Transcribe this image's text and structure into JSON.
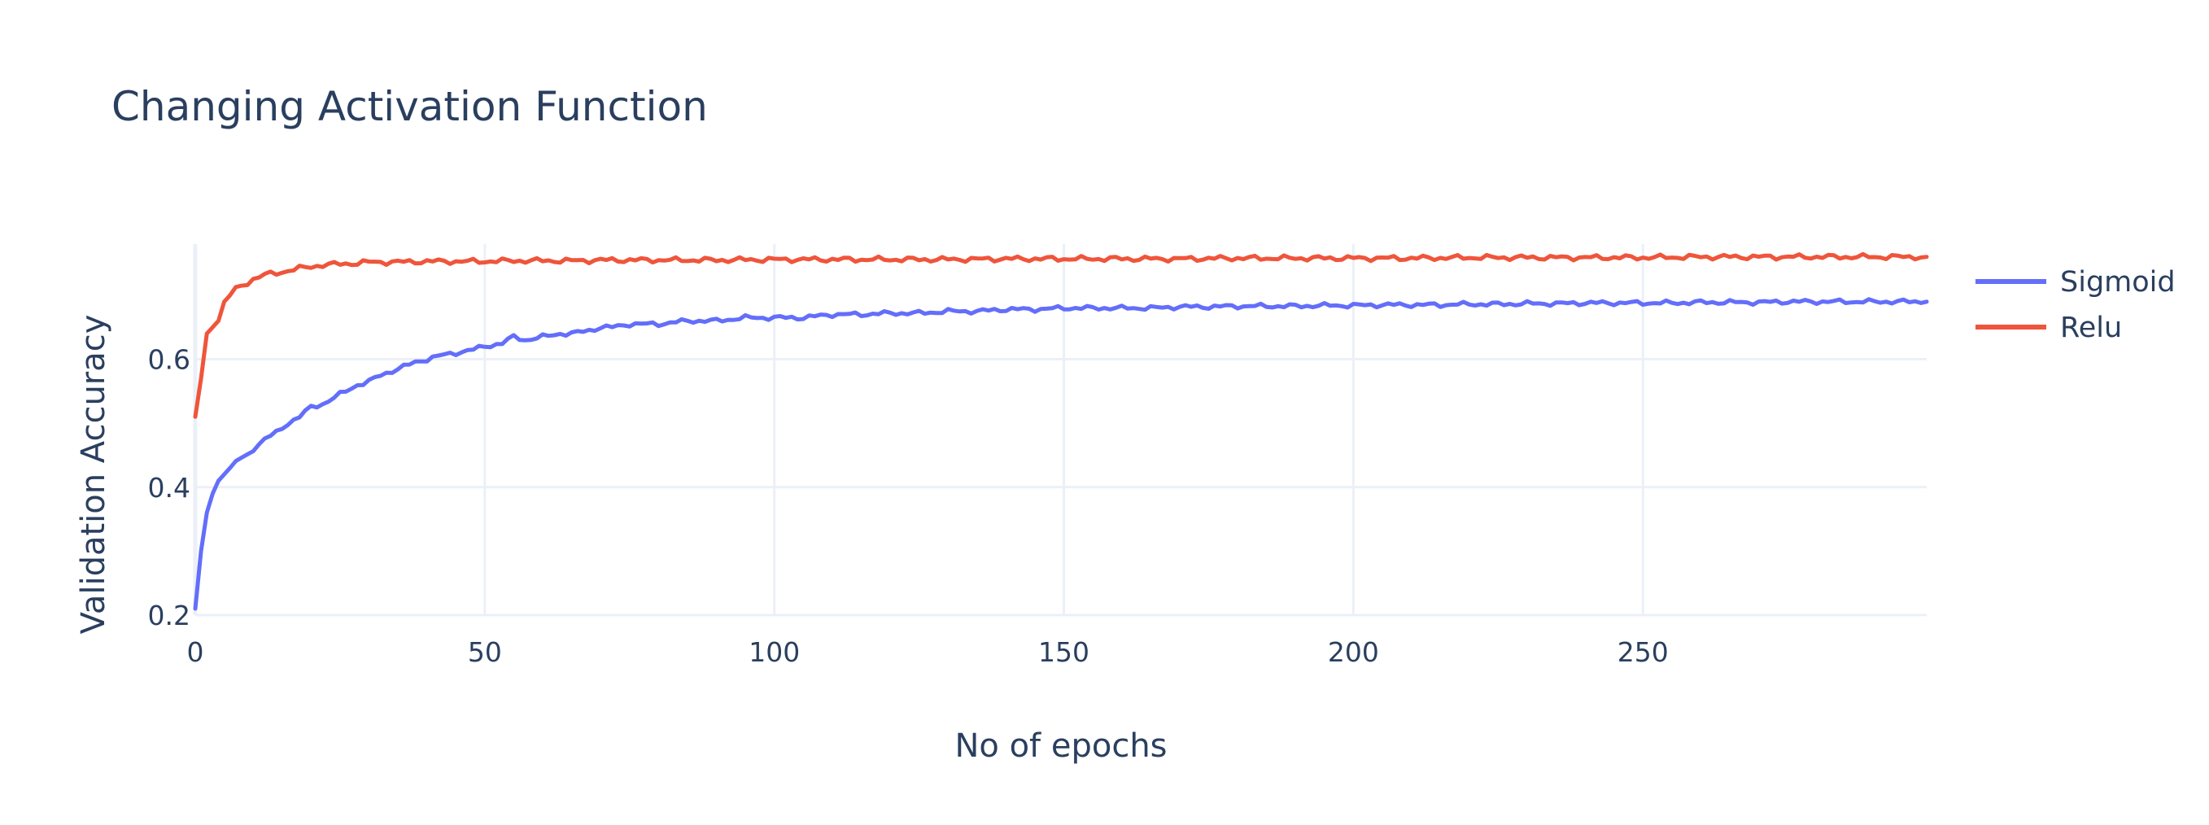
{
  "chart_data": {
    "type": "line",
    "title": "Changing Activation Function",
    "xlabel": "No of epochs",
    "ylabel": "Validation Accuracy",
    "xlim": [
      0,
      299
    ],
    "ylim": [
      0.2,
      0.78
    ],
    "xticks": [
      0,
      50,
      100,
      150,
      200,
      250
    ],
    "yticks": [
      0.2,
      0.4,
      0.6
    ],
    "ytick_labels": [
      "0.2",
      "0.4",
      "0.6"
    ],
    "grid": true,
    "legend_position": "top-right",
    "series": [
      {
        "name": "Sigmoid",
        "color": "#636efa",
        "x": [
          0,
          1,
          2,
          3,
          4,
          5,
          6,
          7,
          8,
          9,
          10,
          12,
          14,
          16,
          18,
          20,
          22,
          25,
          28,
          30,
          32,
          35,
          38,
          40,
          42,
          45,
          48,
          50,
          53,
          55,
          57,
          60,
          63,
          65,
          68,
          70,
          72,
          75,
          80,
          85,
          90,
          95,
          100,
          105,
          110,
          115,
          120,
          125,
          130,
          135,
          140,
          145,
          150,
          155,
          160,
          165,
          170,
          175,
          180,
          185,
          190,
          195,
          200,
          205,
          210,
          215,
          220,
          225,
          230,
          235,
          240,
          245,
          250,
          255,
          260,
          265,
          270,
          275,
          280,
          285,
          290,
          295,
          299
        ],
        "y": [
          0.21,
          0.3,
          0.36,
          0.39,
          0.41,
          0.42,
          0.43,
          0.44,
          0.445,
          0.45,
          0.46,
          0.475,
          0.485,
          0.5,
          0.51,
          0.525,
          0.53,
          0.545,
          0.56,
          0.565,
          0.575,
          0.585,
          0.595,
          0.6,
          0.605,
          0.61,
          0.615,
          0.62,
          0.625,
          0.635,
          0.63,
          0.635,
          0.64,
          0.64,
          0.645,
          0.65,
          0.65,
          0.655,
          0.655,
          0.66,
          0.66,
          0.665,
          0.665,
          0.665,
          0.67,
          0.67,
          0.672,
          0.672,
          0.675,
          0.675,
          0.678,
          0.678,
          0.68,
          0.68,
          0.68,
          0.68,
          0.682,
          0.682,
          0.683,
          0.683,
          0.683,
          0.684,
          0.684,
          0.685,
          0.685,
          0.685,
          0.686,
          0.686,
          0.687,
          0.687,
          0.688,
          0.688,
          0.688,
          0.688,
          0.689,
          0.689,
          0.689,
          0.69,
          0.69,
          0.69,
          0.69,
          0.69,
          0.69
        ]
      },
      {
        "name": "Relu",
        "color": "#ef553b",
        "x": [
          0,
          1,
          2,
          3,
          4,
          5,
          6,
          7,
          8,
          9,
          10,
          11,
          12,
          14,
          16,
          18,
          20,
          22,
          25,
          28,
          30,
          35,
          40,
          45,
          50,
          55,
          60,
          65,
          70,
          75,
          80,
          90,
          100,
          110,
          120,
          130,
          140,
          150,
          160,
          170,
          180,
          190,
          200,
          210,
          220,
          230,
          240,
          250,
          260,
          270,
          280,
          290,
          299
        ],
        "y": [
          0.51,
          0.57,
          0.64,
          0.65,
          0.66,
          0.69,
          0.7,
          0.71,
          0.715,
          0.72,
          0.725,
          0.728,
          0.732,
          0.735,
          0.738,
          0.742,
          0.745,
          0.747,
          0.749,
          0.75,
          0.752,
          0.752,
          0.753,
          0.753,
          0.753,
          0.754,
          0.754,
          0.754,
          0.755,
          0.755,
          0.755,
          0.755,
          0.756,
          0.756,
          0.756,
          0.756,
          0.757,
          0.757,
          0.757,
          0.757,
          0.758,
          0.758,
          0.758,
          0.758,
          0.759,
          0.759,
          0.759,
          0.759,
          0.76,
          0.76,
          0.76,
          0.76,
          0.76
        ]
      }
    ]
  }
}
